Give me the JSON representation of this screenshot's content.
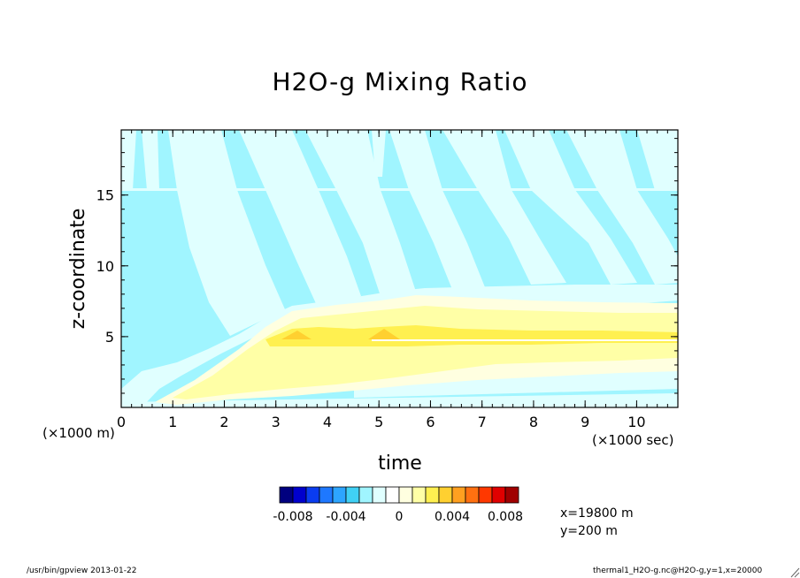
{
  "chart_data": {
    "type": "heatmap",
    "title": "H2O-g Mixing Ratio",
    "xlabel": "time",
    "ylabel": "z-coordinate",
    "x_unit_note": "(×1000 sec)",
    "y_unit_note": "(×1000 m)",
    "xlim": [
      0,
      10.8
    ],
    "ylim": [
      0,
      19.6
    ],
    "x_ticks": [
      0,
      1,
      2,
      3,
      4,
      5,
      6,
      7,
      8,
      9,
      10
    ],
    "y_ticks": [
      5,
      10,
      15
    ],
    "colorbar": {
      "levels": [
        -0.01,
        -0.009,
        -0.008,
        -0.007,
        -0.006,
        -0.005,
        -0.004,
        -0.003,
        -0.002,
        -0.001,
        0,
        0.001,
        0.002,
        0.003,
        0.004,
        0.005,
        0.006,
        0.007,
        0.008,
        0.009,
        0.01
      ],
      "colors": [
        "#00007f",
        "#0000cd",
        "#0a3cf0",
        "#1e78ff",
        "#2da5ff",
        "#40d0f5",
        "#a0f5ff",
        "#e0ffff",
        "#ffffff",
        "#ffffe0",
        "#ffffa6",
        "#fff050",
        "#ffd030",
        "#ffa020",
        "#ff7010",
        "#ff3800",
        "#e00000",
        "#a00000"
      ],
      "tick_labels": [
        "-0.008",
        "-0.004",
        "0",
        "0.004",
        "0.008"
      ],
      "tick_values": [
        -0.008,
        -0.004,
        0,
        0.004,
        0.008
      ]
    },
    "regions": [
      {
        "level": "-0.002 to -0.001",
        "color": "#a0f5ff"
      },
      {
        "level": "-0.001 to 0",
        "color": "#e0ffff"
      },
      {
        "level": "0 to 0.001",
        "color": "#ffffe0"
      },
      {
        "level": "0.001 to 0.002",
        "color": "#ffffa6"
      },
      {
        "level": "0.002 to 0.003",
        "color": "#fff050"
      }
    ]
  },
  "annotations": {
    "x_position": "x=19800 m",
    "y_position": "y=200 m"
  },
  "footer": {
    "left": "/usr/bin/gpview  2013-01-22",
    "right": "thermal1_H2O-g.nc@H2O-g,y=1,x=20000"
  }
}
